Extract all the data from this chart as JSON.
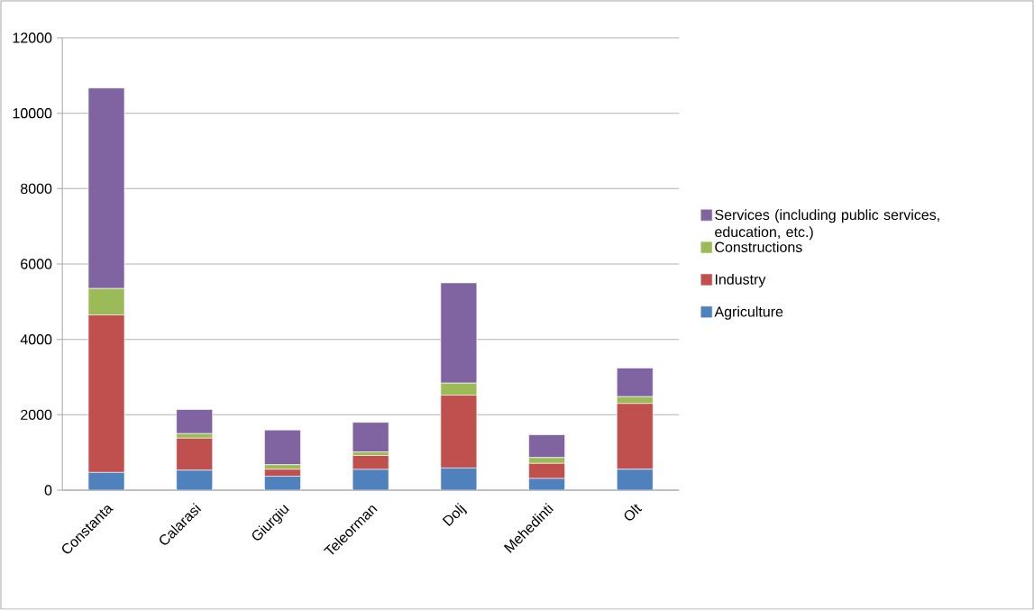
{
  "chart_data": {
    "type": "bar",
    "stacked": true,
    "categories": [
      "Constanta",
      "Calarasi",
      "Giurgiu",
      "Teleorman",
      "Dolj",
      "Mehedinti",
      "Olt"
    ],
    "series": [
      {
        "name": "Agriculture",
        "color": "#4f81bd",
        "values": [
          470,
          530,
          370,
          550,
          590,
          310,
          555
        ]
      },
      {
        "name": "Industry",
        "color": "#c0504d",
        "values": [
          4180,
          850,
          185,
          370,
          1930,
          400,
          1745
        ]
      },
      {
        "name": "Constructions",
        "color": "#9bbb59",
        "values": [
          700,
          120,
          120,
          95,
          320,
          155,
          180
        ]
      },
      {
        "name": "Services (including public services, education, etc.)",
        "color": "#8064a2",
        "values": [
          5320,
          640,
          920,
          785,
          2660,
          605,
          760
        ]
      }
    ],
    "ylim": [
      0,
      12000
    ],
    "yticks": [
      0,
      2000,
      4000,
      6000,
      8000,
      10000,
      12000
    ],
    "grid": "y",
    "legend": "right"
  }
}
